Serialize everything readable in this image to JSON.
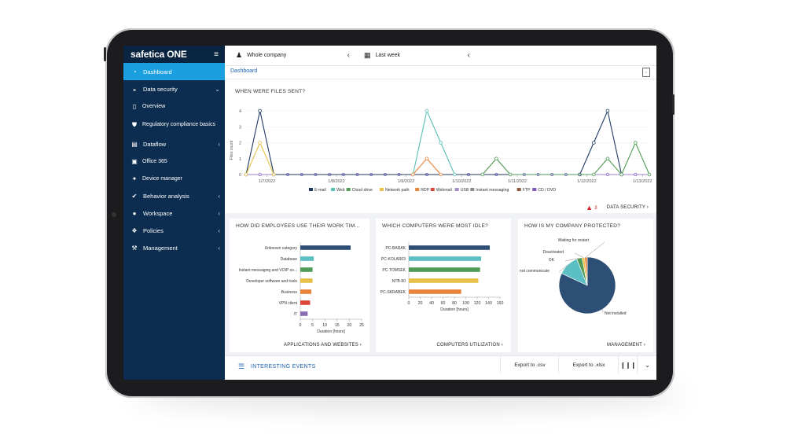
{
  "app": {
    "logo_main": "safetica",
    "logo_suffix": " ONE",
    "menu_icon": "hamburger-icon"
  },
  "sidebar": {
    "items": [
      {
        "label": "Dashboard",
        "icon": "dashboard-icon",
        "active": true
      },
      {
        "label": "Data security",
        "icon": "shield-icon",
        "chevron": "down"
      },
      {
        "label": "Overview",
        "icon": "document-icon",
        "sub": true
      },
      {
        "label": "Regulatory compliance basics",
        "icon": "badge-icon",
        "sub": true
      },
      {
        "label": "Dataflow",
        "icon": "file-icon",
        "chevron": "left"
      },
      {
        "label": "Office 365",
        "icon": "office-icon",
        "sub": true
      },
      {
        "label": "Device manager",
        "icon": "usb-icon",
        "sub": true
      },
      {
        "label": "Behavior analysis",
        "icon": "check-circle-icon",
        "chevron": "left"
      },
      {
        "label": "Workspace",
        "icon": "user-icon",
        "chevron": "left"
      },
      {
        "label": "Policies",
        "icon": "network-icon",
        "chevron": "left"
      },
      {
        "label": "Management",
        "icon": "gavel-icon",
        "chevron": "left"
      }
    ]
  },
  "topbar": {
    "scope": "Whole company",
    "period": "Last week"
  },
  "breadcrumb": "Dashboard",
  "files_card": {
    "title": "WHEN WERE FILES SENT?",
    "ylabel": "Files count",
    "alert_count": "3",
    "link": "DATA SECURITY ›"
  },
  "employees_card": {
    "title": "HOW DID EMPLOYEES USE THEIR WORK TIM...",
    "link": "APPLICATIONS AND WEBSITES ›",
    "xlabel": "Duration [hours]"
  },
  "idle_card": {
    "title": "WHICH COMPUTERS WERE MOST IDLE?",
    "link": "COMPUTERS UTILIZATION ›",
    "xlabel": "Duration [hours]"
  },
  "protect_card": {
    "title": "HOW IS MY COMPANY PROTECTED?",
    "link": "MANAGEMENT ›"
  },
  "events": {
    "title": "INTERESTING EVENTS",
    "export_csv": "Export to .csv",
    "export_xlsx": "Export to .xlsx"
  },
  "colors": {
    "sidebar": "#0c2d4f",
    "active": "#1aa0e0",
    "accent": "#1a62b0",
    "alert": "#d9262c"
  },
  "chart_data": [
    {
      "type": "line",
      "title": "WHEN WERE FILES SENT?",
      "ylabel": "Files count",
      "ylim": [
        0,
        4
      ],
      "yticks": [
        0,
        1,
        2,
        3,
        4
      ],
      "xtick_labels": [
        "1/7/2022",
        "1/8/2022",
        "1/9/2022",
        "1/10/2022",
        "1/11/2022",
        "1/12/2022",
        "1/13/2022"
      ],
      "n_points": 30,
      "legend": [
        {
          "name": "E-mail",
          "color": "#1f3a62"
        },
        {
          "name": "Web",
          "color": "#5bbfb5"
        },
        {
          "name": "Cloud drive",
          "color": "#4f9b57"
        },
        {
          "name": "Network path",
          "color": "#e6c14a"
        },
        {
          "name": "RDP",
          "color": "#e8853b"
        },
        {
          "name": "Webmail",
          "color": "#d9473a"
        },
        {
          "name": "USB",
          "color": "#a58cc7"
        },
        {
          "name": "Instant messaging",
          "color": "#8c8c8c"
        },
        {
          "name": "FTP",
          "color": "#8b5a3c"
        },
        {
          "name": "CD / DVD",
          "color": "#7e57c2"
        }
      ],
      "series": [
        {
          "name": "E-mail",
          "color": "#1f3a62",
          "points": [
            [
              1,
              0
            ],
            [
              2,
              4
            ],
            [
              3,
              0
            ],
            [
              25,
              0
            ],
            [
              26,
              2
            ],
            [
              27,
              4
            ],
            [
              28,
              0
            ]
          ]
        },
        {
          "name": "Network path",
          "color": "#e6c14a",
          "points": [
            [
              1,
              0
            ],
            [
              2,
              2
            ],
            [
              3,
              0
            ]
          ]
        },
        {
          "name": "Web",
          "color": "#5bbfb5",
          "points": [
            [
              13,
              0
            ],
            [
              14,
              4
            ],
            [
              15,
              2
            ],
            [
              16,
              0
            ]
          ]
        },
        {
          "name": "RDP",
          "color": "#e8853b",
          "points": [
            [
              13,
              0
            ],
            [
              14,
              1
            ],
            [
              15,
              0
            ]
          ]
        },
        {
          "name": "Cloud drive",
          "color": "#4f9b57",
          "points": [
            [
              18,
              0
            ],
            [
              19,
              1
            ],
            [
              20,
              0
            ],
            [
              26,
              0
            ],
            [
              27,
              1
            ],
            [
              28,
              0
            ],
            [
              29,
              2
            ],
            [
              30,
              0
            ]
          ]
        },
        {
          "name": "CD / DVD",
          "color": "#7e57c2",
          "baseline": true
        }
      ]
    },
    {
      "type": "bar",
      "title": "HOW DID EMPLOYEES USE THEIR WORK TIM...",
      "orientation": "horizontal",
      "categories": [
        "Unknown category",
        "Database",
        "Instant messaging and VOIP so...",
        "Developer software and tools",
        "Business",
        "VPN client",
        "IT"
      ],
      "values": [
        20.5,
        5.5,
        5,
        5,
        4.5,
        4,
        3
      ],
      "colors": [
        "#2d4f75",
        "#5bbfc4",
        "#4f9b57",
        "#e6c14a",
        "#e8853b",
        "#d9473a",
        "#8c6db3"
      ],
      "xlabel": "Duration [hours]",
      "xticks": [
        0,
        5,
        10,
        15,
        20,
        25
      ],
      "xlim": [
        0,
        25
      ]
    },
    {
      "type": "bar",
      "title": "WHICH COMPUTERS WERE MOST IDLE?",
      "orientation": "horizontal",
      "categories": [
        "PC-BARAK",
        "PC-KOLAR03",
        "PC-TOMSEK",
        "NTB-90",
        "PC-SKRABEK"
      ],
      "values": [
        142,
        127,
        125,
        122,
        92
      ],
      "colors": [
        "#2d4f75",
        "#5bbfc4",
        "#4f9b57",
        "#e6c14a",
        "#e8853b"
      ],
      "xlabel": "Duration [hours]",
      "xticks": [
        0,
        20,
        40,
        60,
        80,
        100,
        120,
        140,
        160
      ],
      "xlim": [
        0,
        160
      ]
    },
    {
      "type": "pie",
      "title": "HOW IS MY COMPANY PROTECTED?",
      "labels": [
        "Not installed",
        "not communicate",
        "OK",
        "Deactivated",
        "Waiting for restart"
      ],
      "values": [
        82,
        12,
        3,
        1.5,
        1.5
      ],
      "colors": [
        "#2d4f75",
        "#5bbfc4",
        "#4f9b57",
        "#e6c14a",
        "#e8853b"
      ]
    }
  ]
}
